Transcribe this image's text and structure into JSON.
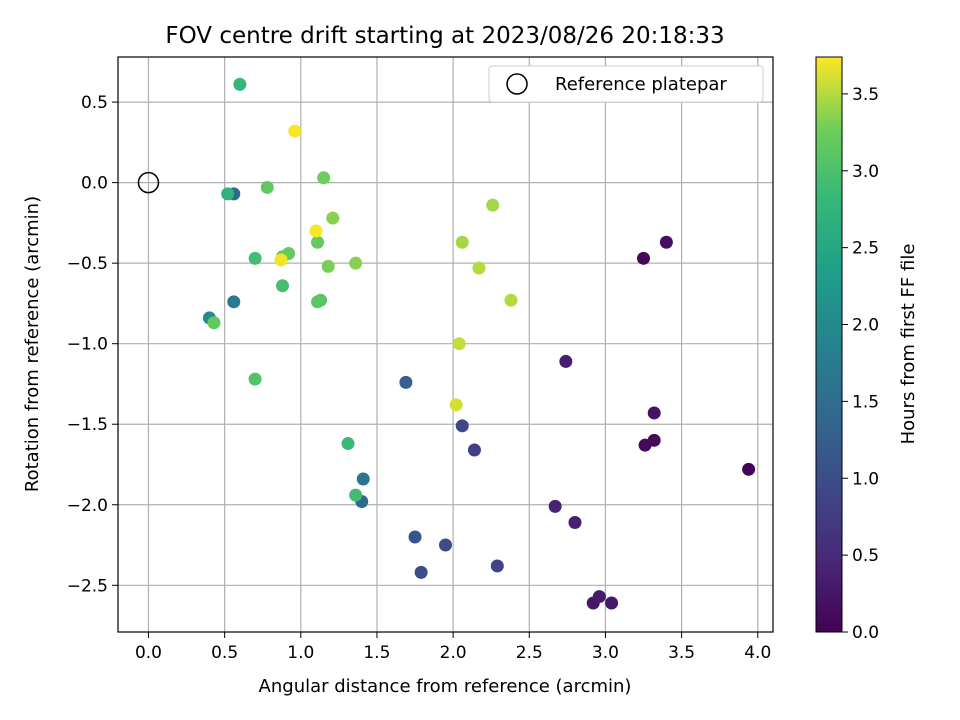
{
  "chart_data": {
    "type": "scatter",
    "title": "FOV centre drift starting at 2023/08/26 20:18:33",
    "xlabel": "Angular distance from reference (arcmin)",
    "ylabel": "Rotation from reference (arcmin)",
    "xlim": [
      -0.2,
      4.1
    ],
    "ylim": [
      -2.79,
      0.78
    ],
    "xticks": [
      "0.0",
      "0.5",
      "1.0",
      "1.5",
      "2.0",
      "2.5",
      "3.0",
      "3.5",
      "4.0"
    ],
    "yticks": [
      "0.5",
      "0.0",
      "−0.5",
      "−1.0",
      "−1.5",
      "−2.0",
      "−2.5"
    ],
    "grid": true,
    "legend": {
      "position": "top-right",
      "entries": [
        "Reference platepar"
      ]
    },
    "reference_point": {
      "x": 0.0,
      "y": 0.0,
      "marker": "open-circle"
    },
    "colorbar": {
      "label": "Hours from first FF file",
      "range": [
        0.0,
        3.74
      ],
      "ticks": [
        "0.0",
        "0.5",
        "1.0",
        "1.5",
        "2.0",
        "2.5",
        "3.0",
        "3.5"
      ],
      "colormap": "viridis"
    },
    "points": [
      {
        "x": 3.94,
        "y": -1.78,
        "c": 0.05
      },
      {
        "x": 3.25,
        "y": -0.47,
        "c": 0.08
      },
      {
        "x": 3.26,
        "y": -1.63,
        "c": 0.1
      },
      {
        "x": 3.32,
        "y": -1.6,
        "c": 0.13
      },
      {
        "x": 3.32,
        "y": -1.43,
        "c": 0.2
      },
      {
        "x": 3.4,
        "y": -0.37,
        "c": 0.15
      },
      {
        "x": 2.92,
        "y": -2.61,
        "c": 0.25
      },
      {
        "x": 2.96,
        "y": -2.57,
        "c": 0.3
      },
      {
        "x": 3.04,
        "y": -2.61,
        "c": 0.28
      },
      {
        "x": 2.74,
        "y": -1.11,
        "c": 0.35
      },
      {
        "x": 2.8,
        "y": -2.11,
        "c": 0.38
      },
      {
        "x": 2.67,
        "y": -2.01,
        "c": 0.42
      },
      {
        "x": 2.29,
        "y": -2.38,
        "c": 0.85
      },
      {
        "x": 2.14,
        "y": -1.66,
        "c": 0.8
      },
      {
        "x": 2.06,
        "y": -1.51,
        "c": 0.9
      },
      {
        "x": 1.95,
        "y": -2.25,
        "c": 0.95
      },
      {
        "x": 1.79,
        "y": -2.42,
        "c": 1.0
      },
      {
        "x": 1.75,
        "y": -2.2,
        "c": 1.1
      },
      {
        "x": 1.69,
        "y": -1.24,
        "c": 1.3
      },
      {
        "x": 1.4,
        "y": -1.98,
        "c": 1.4
      },
      {
        "x": 1.41,
        "y": -1.84,
        "c": 1.6
      },
      {
        "x": 0.56,
        "y": -0.07,
        "c": 1.4
      },
      {
        "x": 0.56,
        "y": -0.74,
        "c": 1.7
      },
      {
        "x": 0.4,
        "y": -0.84,
        "c": 2.0
      },
      {
        "x": 0.52,
        "y": -0.07,
        "c": 2.7
      },
      {
        "x": 0.6,
        "y": 0.61,
        "c": 2.8
      },
      {
        "x": 1.31,
        "y": -1.62,
        "c": 2.85
      },
      {
        "x": 1.36,
        "y": -1.94,
        "c": 2.9
      },
      {
        "x": 0.7,
        "y": -0.47,
        "c": 2.9
      },
      {
        "x": 0.88,
        "y": -0.64,
        "c": 2.95
      },
      {
        "x": 0.7,
        "y": -1.22,
        "c": 3.05
      },
      {
        "x": 1.13,
        "y": -0.73,
        "c": 3.1
      },
      {
        "x": 1.11,
        "y": -0.74,
        "c": 3.12
      },
      {
        "x": 0.43,
        "y": -0.87,
        "c": 3.15
      },
      {
        "x": 0.78,
        "y": -0.03,
        "c": 3.15
      },
      {
        "x": 0.88,
        "y": -0.46,
        "c": 3.15
      },
      {
        "x": 0.92,
        "y": -0.44,
        "c": 3.2
      },
      {
        "x": 1.11,
        "y": -0.37,
        "c": 3.2
      },
      {
        "x": 1.15,
        "y": 0.03,
        "c": 3.25
      },
      {
        "x": 1.18,
        "y": -0.52,
        "c": 3.3
      },
      {
        "x": 1.21,
        "y": -0.22,
        "c": 3.35
      },
      {
        "x": 1.36,
        "y": -0.5,
        "c": 3.35
      },
      {
        "x": 2.06,
        "y": -0.37,
        "c": 3.45
      },
      {
        "x": 2.26,
        "y": -0.14,
        "c": 3.45
      },
      {
        "x": 2.17,
        "y": -0.53,
        "c": 3.5
      },
      {
        "x": 2.38,
        "y": -0.73,
        "c": 3.5
      },
      {
        "x": 2.04,
        "y": -1.0,
        "c": 3.55
      },
      {
        "x": 2.02,
        "y": -1.38,
        "c": 3.6
      },
      {
        "x": 0.87,
        "y": -0.48,
        "c": 3.7
      },
      {
        "x": 1.1,
        "y": -0.3,
        "c": 3.72
      },
      {
        "x": 0.96,
        "y": 0.32,
        "c": 3.72
      }
    ]
  }
}
